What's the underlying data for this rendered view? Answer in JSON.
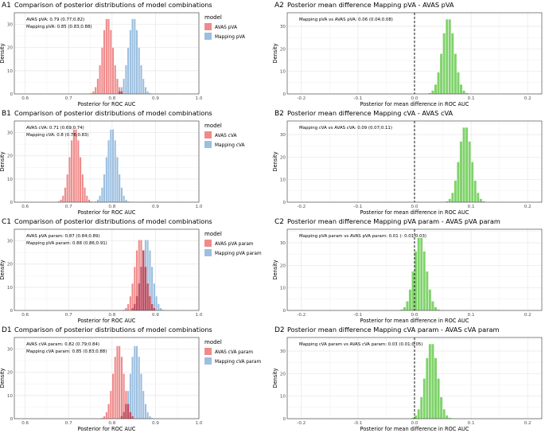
{
  "panels": [
    {
      "tag": "A1",
      "title": "Comparison of posterior distributions of model combinations",
      "kind": "hist2",
      "annot": [
        "AVAS pVA: 0.79 (0.77;0.82)",
        "Mapping pVA: 0.85 (0.83;0.88)"
      ],
      "legend_title": "model",
      "legend": [
        "AVAS pVA",
        "Mapping pVA"
      ]
    },
    {
      "tag": "A2",
      "title": "Posterior mean difference Mapping pVA - AVAS pVA",
      "kind": "diff",
      "annot": [
        "Mapping pVA vs AVAS pVA: 0.06 (0.04;0.08)"
      ]
    },
    {
      "tag": "B1",
      "title": "Comparison of posterior distributions of model combinations",
      "kind": "hist2",
      "annot": [
        "AVAS cVA: 0.71 (0.69;0.74)",
        "Mapping cVA: 0.8 (0.78;0.83)"
      ],
      "legend_title": "model",
      "legend": [
        "AVAS cVA",
        "Mapping cVA"
      ]
    },
    {
      "tag": "B2",
      "title": "Posterior mean difference Mapping cVA - AVAS cVA",
      "kind": "diff",
      "annot": [
        "Mapping cVA vs AVAS cVA: 0.09 (0.07;0.11)"
      ]
    },
    {
      "tag": "C1",
      "title": "Comparison of posterior distributions of model combinations",
      "kind": "hist2",
      "annot": [
        "AVAS pVA param: 0.87 (0.84;0.89)",
        "Mapping pVA param: 0.88 (0.86;0.91)"
      ],
      "legend_title": "model",
      "legend": [
        "AVAS pVA param",
        "Mapping pVA param"
      ]
    },
    {
      "tag": "C2",
      "title": "Posterior mean difference Mapping pVA param - AVAS pVA param",
      "kind": "diff",
      "annot": [
        "Mapping pVA param vs AVAS pVA param: 0.01 (- 0.01;0.03)"
      ]
    },
    {
      "tag": "D1",
      "title": "Comparison of posterior distributions of model combinations",
      "kind": "hist2",
      "annot": [
        "AVAS cVA param: 0.82 (0.79;0.84)",
        "Mapping cVA param: 0.85 (0.83;0.88)"
      ],
      "legend_title": "model",
      "legend": [
        "AVAS cVA param",
        "Mapping cVA param"
      ]
    },
    {
      "tag": "D2",
      "title": "Posterior mean difference Mapping cVA param - AVAS cVA param",
      "kind": "diff",
      "annot": [
        "Mapping cVA param vs AVAS cVA param: 0.03 (0.01;0.05)"
      ]
    }
  ],
  "colors": {
    "avas": "#f08a8a",
    "mapping": "#9bbfe0",
    "overlap": "#b7445a",
    "diff": "#7fd36a",
    "grid": "#e6e6e6",
    "border": "#333333",
    "zero_line": "#000000"
  },
  "chart_data": [
    {
      "panel": "A1",
      "type": "histogram",
      "xlabel": "Posterior for ROC AUC",
      "ylabel": "Density",
      "xlim": [
        0.575,
        1.0
      ],
      "ylim": [
        0,
        35
      ],
      "x_ticks": [
        "0.6",
        "0.7",
        "0.8",
        "0.9",
        "1.0"
      ],
      "y_ticks": [
        "0",
        "10",
        "20",
        "30"
      ],
      "bin_width": 0.005,
      "series": [
        {
          "name": "AVAS pVA",
          "mean": 0.79,
          "sd": 0.0125,
          "peak": 33
        },
        {
          "name": "Mapping pVA",
          "mean": 0.85,
          "sd": 0.0125,
          "peak": 33
        }
      ],
      "legend_position": "right"
    },
    {
      "panel": "A2",
      "type": "histogram",
      "xlabel": "Posterior for mean difference in ROC AUC",
      "ylabel": "Density",
      "xlim": [
        -0.225,
        0.225
      ],
      "ylim": [
        0,
        36
      ],
      "x_ticks": [
        "-0.2",
        "-0.1",
        "0.0",
        "0.1",
        "0.2"
      ],
      "y_ticks": [
        "0",
        "10",
        "20",
        "30"
      ],
      "bin_width": 0.005,
      "reference_line_x": 0,
      "series": [
        {
          "name": "",
          "mean": 0.06,
          "sd": 0.011,
          "peak": 34
        }
      ]
    },
    {
      "panel": "B1",
      "type": "histogram",
      "xlabel": "Posterior for ROC AUC",
      "ylabel": "Density",
      "xlim": [
        0.575,
        1.0
      ],
      "ylim": [
        0,
        35
      ],
      "x_ticks": [
        "0.6",
        "0.7",
        "0.8",
        "0.9",
        "1.0"
      ],
      "y_ticks": [
        "0",
        "10",
        "20",
        "30"
      ],
      "bin_width": 0.005,
      "series": [
        {
          "name": "AVAS cVA",
          "mean": 0.715,
          "sd": 0.0125,
          "peak": 32
        },
        {
          "name": "Mapping cVA",
          "mean": 0.8,
          "sd": 0.0125,
          "peak": 32
        }
      ],
      "legend_position": "right"
    },
    {
      "panel": "B2",
      "type": "histogram",
      "xlabel": "Posterior for mean difference in ROC AUC",
      "ylabel": "Density",
      "xlim": [
        -0.225,
        0.225
      ],
      "ylim": [
        0,
        36
      ],
      "x_ticks": [
        "-0.2",
        "-0.1",
        "0.0",
        "0.1",
        "0.2"
      ],
      "y_ticks": [
        "0",
        "10",
        "20",
        "30"
      ],
      "bin_width": 0.005,
      "reference_line_x": 0,
      "series": [
        {
          "name": "",
          "mean": 0.09,
          "sd": 0.011,
          "peak": 34
        }
      ]
    },
    {
      "panel": "C1",
      "type": "histogram",
      "xlabel": "Posterior for ROC AUC",
      "ylabel": "Density",
      "xlim": [
        0.575,
        1.0
      ],
      "ylim": [
        0,
        35
      ],
      "x_ticks": [
        "0.6",
        "0.7",
        "0.8",
        "0.9",
        "1.0"
      ],
      "y_ticks": [
        "0",
        "10",
        "20",
        "30"
      ],
      "bin_width": 0.005,
      "series": [
        {
          "name": "AVAS pVA param",
          "mean": 0.865,
          "sd": 0.0125,
          "peak": 31
        },
        {
          "name": "Mapping pVA param",
          "mean": 0.88,
          "sd": 0.0125,
          "peak": 31
        }
      ],
      "legend_position": "right"
    },
    {
      "panel": "C2",
      "type": "histogram",
      "xlabel": "Posterior for mean difference in ROC AUC",
      "ylabel": "Density",
      "xlim": [
        -0.225,
        0.225
      ],
      "ylim": [
        0,
        36
      ],
      "x_ticks": [
        "-0.2",
        "-0.1",
        "0.0",
        "0.1",
        "0.2"
      ],
      "y_ticks": [
        "0",
        "10",
        "20",
        "30"
      ],
      "bin_width": 0.005,
      "reference_line_x": 0,
      "series": [
        {
          "name": "",
          "mean": 0.01,
          "sd": 0.011,
          "peak": 33
        }
      ]
    },
    {
      "panel": "D1",
      "type": "histogram",
      "xlabel": "Posterior for ROC AUC",
      "ylabel": "Density",
      "xlim": [
        0.575,
        1.0
      ],
      "ylim": [
        0,
        35
      ],
      "x_ticks": [
        "0.6",
        "0.7",
        "0.8",
        "0.9",
        "1.0"
      ],
      "y_ticks": [
        "0",
        "10",
        "20",
        "30"
      ],
      "bin_width": 0.005,
      "series": [
        {
          "name": "AVAS cVA param",
          "mean": 0.815,
          "sd": 0.0125,
          "peak": 32
        },
        {
          "name": "Mapping cVA param",
          "mean": 0.855,
          "sd": 0.0125,
          "peak": 32
        }
      ],
      "legend_position": "right"
    },
    {
      "panel": "D2",
      "type": "histogram",
      "xlabel": "Posterior for mean difference in ROC AUC",
      "ylabel": "Density",
      "xlim": [
        -0.225,
        0.225
      ],
      "ylim": [
        0,
        36
      ],
      "x_ticks": [
        "-0.2",
        "-0.1",
        "0.0",
        "0.1",
        "0.2"
      ],
      "y_ticks": [
        "0",
        "10",
        "20",
        "30"
      ],
      "bin_width": 0.005,
      "reference_line_x": 0,
      "series": [
        {
          "name": "",
          "mean": 0.03,
          "sd": 0.011,
          "peak": 34
        }
      ]
    }
  ]
}
